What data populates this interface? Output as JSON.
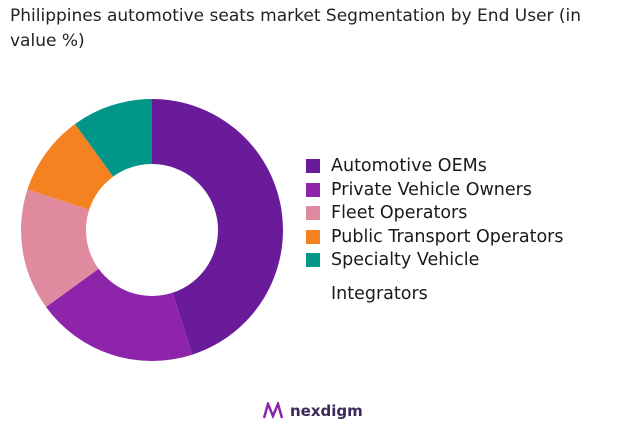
{
  "chart_data": {
    "type": "pie",
    "variant": "donut",
    "title": "Philippines automotive seats market Segmentation by End User (in value %)",
    "categories": [
      "Automotive OEMs",
      "Private Vehicle Owners",
      "Fleet Operators",
      "Public Transport Operators",
      "Specialty Vehicle Integrators"
    ],
    "values": [
      45,
      20,
      15,
      10,
      10
    ],
    "colors": [
      "#6a1b9a",
      "#8e24aa",
      "#e08aa0",
      "#f58220",
      "#009688"
    ],
    "legend_position": "right"
  },
  "legend_lines": [
    "Automotive OEMs",
    "Private Vehicle Owners",
    "Fleet Operators",
    "Public Transport Operators",
    "Specialty Vehicle",
    "Integrators"
  ],
  "brand": "nexdigm"
}
